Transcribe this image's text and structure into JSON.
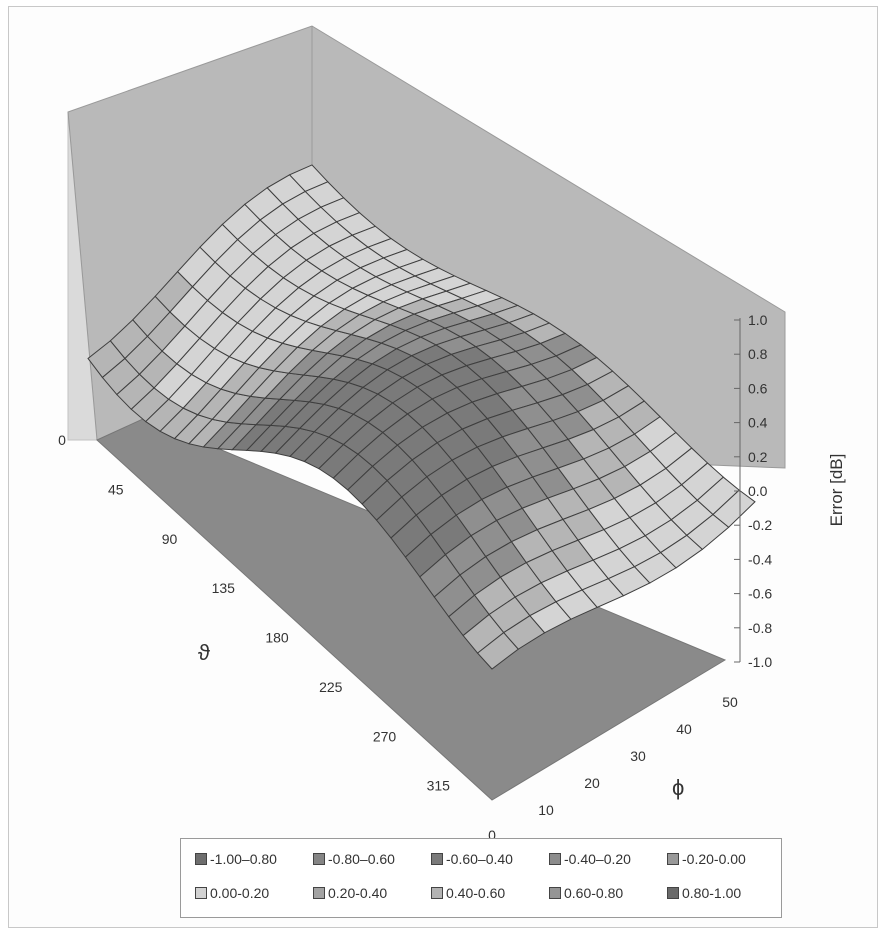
{
  "chart_data": {
    "type": "surface",
    "title": "",
    "zlabel": "Error [dB]",
    "xlabel": "ϑ",
    "ylabel": "ϕ",
    "x_ticks": [
      "0",
      "45",
      "90",
      "135",
      "180",
      "225",
      "270",
      "315",
      "0"
    ],
    "y_ticks": [
      "10",
      "20",
      "30",
      "40",
      "50"
    ],
    "z_ticks": [
      "-1.0",
      "-0.8",
      "-0.6",
      "-0.4",
      "-0.2",
      "0.0",
      "0.2",
      "0.4",
      "0.6",
      "0.8",
      "1.0"
    ],
    "zlim": [
      -1.0,
      1.0
    ],
    "grid": true,
    "legend_position": "bottom",
    "legend": [
      {
        "label": "-1.00–0.80",
        "color": "#6e6e6e"
      },
      {
        "label": "-0.80–0.60",
        "color": "#858585"
      },
      {
        "label": "-0.60–0.40",
        "color": "#7a7a7a"
      },
      {
        "label": "-0.40–0.20",
        "color": "#8c8c8c"
      },
      {
        "label": "-0.20-0.00",
        "color": "#999999"
      },
      {
        "label": "0.00-0.20",
        "color": "#d2d2d2"
      },
      {
        "label": "0.20-0.40",
        "color": "#a3a3a3"
      },
      {
        "label": "0.40-0.60",
        "color": "#b3b3b3"
      },
      {
        "label": "0.60-0.80",
        "color": "#959595"
      },
      {
        "label": "0.80-1.00",
        "color": "#6a6a6a"
      }
    ]
  }
}
